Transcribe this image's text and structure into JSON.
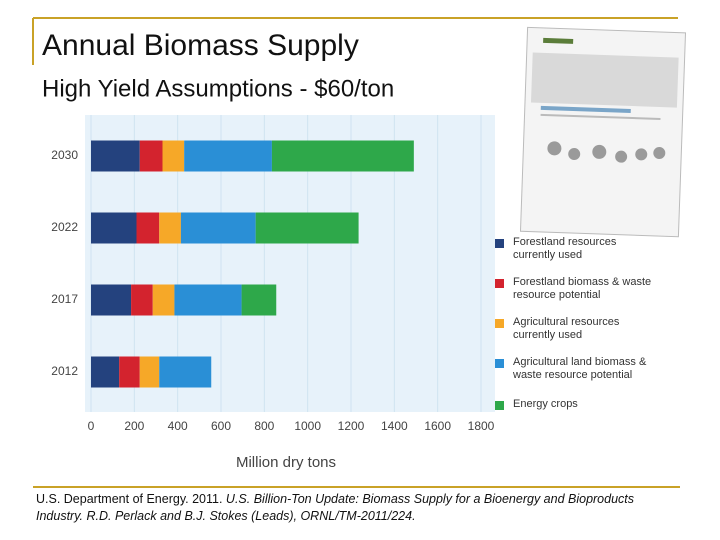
{
  "header": {
    "title": "Annual Biomass Supply",
    "subtitle": "High Yield Assumptions - $60/ton"
  },
  "chart_data": {
    "type": "bar",
    "orientation": "horizontal",
    "stacked": true,
    "categories": [
      "2030",
      "2022",
      "2017",
      "2012"
    ],
    "series": [
      {
        "name": "Forestland resources currently used",
        "color": "#24427e",
        "values": [
          225,
          210,
          185,
          130
        ]
      },
      {
        "name": "Forestland biomass & waste resource potential",
        "color": "#d3232e",
        "values": [
          105,
          105,
          100,
          95
        ]
      },
      {
        "name": "Agricultural resources currently used",
        "color": "#f6a828",
        "values": [
          100,
          100,
          100,
          90
        ]
      },
      {
        "name": "Agricultural land biomass & waste resource potential",
        "color": "#2a8fd6",
        "values": [
          405,
          345,
          310,
          240
        ]
      },
      {
        "name": "Energy crops",
        "color": "#2ea84a",
        "values": [
          655,
          475,
          160,
          0
        ]
      }
    ],
    "xlim": [
      0,
      1800
    ],
    "xticks": [
      0,
      200,
      400,
      600,
      800,
      1000,
      1200,
      1400,
      1600,
      1800
    ],
    "x_label": "Million dry tons",
    "grid": true
  },
  "citation": {
    "author": "U.S. Department of Energy. 2011. ",
    "work": "U.S. Billion-Ton Update: Biomass Supply for a Bioenergy and Bioproducts Industry. R.D. Perlack and B.J. Stokes (Leads), ORNL/TM-2011/224."
  }
}
